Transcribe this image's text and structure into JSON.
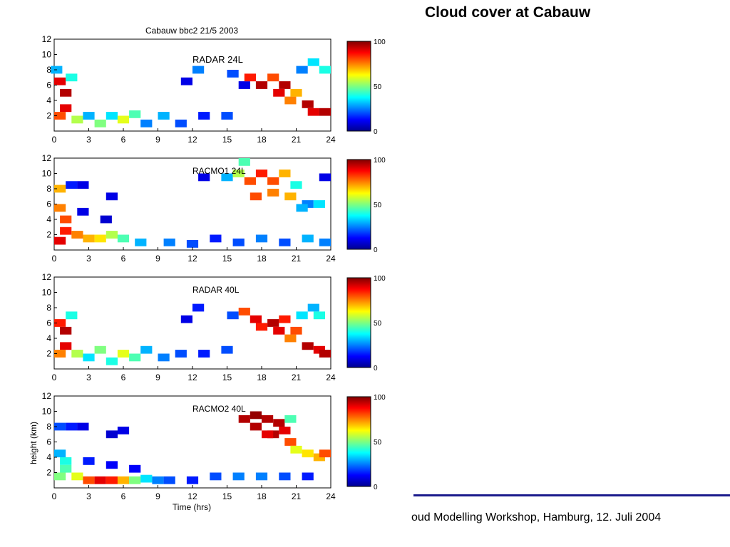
{
  "slide": {
    "title": "Cloud cover at Cabauw",
    "footer": "oud Modelling Workshop, Hamburg, 12. Juli 2004"
  },
  "chart_data": {
    "type": "heatmap",
    "figure_title": "Cabauw bbc2 21/5 2003",
    "xlabel": "Time (hrs)",
    "ylabel": "height (km)",
    "xlim": [
      0,
      24
    ],
    "ylim": [
      0,
      12
    ],
    "xticks": [
      "0",
      "3",
      "6",
      "9",
      "12",
      "15",
      "18",
      "21",
      "24"
    ],
    "yticks": [
      "2",
      "4",
      "6",
      "8",
      "10",
      "12"
    ],
    "colorbar": {
      "ticks": [
        "100",
        "50",
        "0"
      ],
      "range": [
        0,
        100
      ],
      "colormap": "jet"
    },
    "panels": [
      {
        "name": "RADAR 24L",
        "cells": [
          {
            "t": 0.5,
            "z": 6.5,
            "v": 90
          },
          {
            "t": 1.0,
            "z": 5.0,
            "v": 95
          },
          {
            "t": 1.0,
            "z": 3.0,
            "v": 90
          },
          {
            "t": 0.5,
            "z": 2.0,
            "v": 80
          },
          {
            "t": 1.5,
            "z": 7.0,
            "v": 40
          },
          {
            "t": 0.2,
            "z": 8.0,
            "v": 30
          },
          {
            "t": 2.0,
            "z": 1.5,
            "v": 55
          },
          {
            "t": 3.0,
            "z": 2.0,
            "v": 30
          },
          {
            "t": 4.0,
            "z": 1.0,
            "v": 50
          },
          {
            "t": 5.0,
            "z": 2.0,
            "v": 35
          },
          {
            "t": 6.0,
            "z": 1.5,
            "v": 60
          },
          {
            "t": 7.0,
            "z": 2.2,
            "v": 45
          },
          {
            "t": 8.0,
            "z": 1.0,
            "v": 25
          },
          {
            "t": 9.5,
            "z": 2.0,
            "v": 30
          },
          {
            "t": 11.0,
            "z": 1.0,
            "v": 20
          },
          {
            "t": 13.0,
            "z": 2.0,
            "v": 15
          },
          {
            "t": 15.0,
            "z": 2.0,
            "v": 20
          },
          {
            "t": 11.5,
            "z": 6.5,
            "v": 10
          },
          {
            "t": 12.5,
            "z": 8.0,
            "v": 25
          },
          {
            "t": 15.5,
            "z": 7.5,
            "v": 20
          },
          {
            "t": 16.5,
            "z": 6.0,
            "v": 10
          },
          {
            "t": 17.0,
            "z": 7.0,
            "v": 85
          },
          {
            "t": 18.0,
            "z": 6.0,
            "v": 95
          },
          {
            "t": 19.0,
            "z": 7.0,
            "v": 80
          },
          {
            "t": 19.5,
            "z": 5.0,
            "v": 90
          },
          {
            "t": 20.0,
            "z": 6.0,
            "v": 95
          },
          {
            "t": 20.5,
            "z": 4.0,
            "v": 75
          },
          {
            "t": 21.0,
            "z": 5.0,
            "v": 70
          },
          {
            "t": 22.0,
            "z": 3.5,
            "v": 95
          },
          {
            "t": 22.5,
            "z": 2.5,
            "v": 90
          },
          {
            "t": 23.5,
            "z": 2.5,
            "v": 95
          },
          {
            "t": 21.5,
            "z": 8.0,
            "v": 25
          },
          {
            "t": 22.5,
            "z": 9.0,
            "v": 35
          },
          {
            "t": 23.5,
            "z": 8.0,
            "v": 40
          }
        ]
      },
      {
        "name": "RACMO1 24L",
        "cells": [
          {
            "t": 0.5,
            "z": 5.5,
            "v": 75
          },
          {
            "t": 1.0,
            "z": 4.0,
            "v": 80
          },
          {
            "t": 1.0,
            "z": 2.5,
            "v": 85
          },
          {
            "t": 0.5,
            "z": 1.2,
            "v": 90
          },
          {
            "t": 2.0,
            "z": 2.0,
            "v": 75
          },
          {
            "t": 3.0,
            "z": 1.5,
            "v": 70
          },
          {
            "t": 4.0,
            "z": 1.5,
            "v": 65
          },
          {
            "t": 5.0,
            "z": 2.0,
            "v": 55
          },
          {
            "t": 6.0,
            "z": 1.5,
            "v": 45
          },
          {
            "t": 7.5,
            "z": 1.0,
            "v": 30
          },
          {
            "t": 10.0,
            "z": 1.0,
            "v": 25
          },
          {
            "t": 12.0,
            "z": 0.8,
            "v": 20
          },
          {
            "t": 14.0,
            "z": 1.5,
            "v": 15
          },
          {
            "t": 16.0,
            "z": 1.0,
            "v": 20
          },
          {
            "t": 18.0,
            "z": 1.5,
            "v": 25
          },
          {
            "t": 20.0,
            "z": 1.0,
            "v": 20
          },
          {
            "t": 22.0,
            "z": 1.5,
            "v": 30
          },
          {
            "t": 23.5,
            "z": 1.0,
            "v": 25
          },
          {
            "t": 0.5,
            "z": 8.0,
            "v": 70
          },
          {
            "t": 1.5,
            "z": 8.5,
            "v": 15
          },
          {
            "t": 2.5,
            "z": 8.5,
            "v": 10
          },
          {
            "t": 5.0,
            "z": 7.0,
            "v": 10
          },
          {
            "t": 2.5,
            "z": 5.0,
            "v": 10
          },
          {
            "t": 4.5,
            "z": 4.0,
            "v": 8
          },
          {
            "t": 13.0,
            "z": 9.5,
            "v": 10
          },
          {
            "t": 15.0,
            "z": 9.5,
            "v": 30
          },
          {
            "t": 16.0,
            "z": 10.0,
            "v": 55
          },
          {
            "t": 17.0,
            "z": 9.0,
            "v": 80
          },
          {
            "t": 18.0,
            "z": 10.0,
            "v": 85
          },
          {
            "t": 19.0,
            "z": 9.0,
            "v": 80
          },
          {
            "t": 20.0,
            "z": 10.0,
            "v": 70
          },
          {
            "t": 21.0,
            "z": 8.5,
            "v": 40
          },
          {
            "t": 22.0,
            "z": 6.0,
            "v": 25
          },
          {
            "t": 17.5,
            "z": 7.0,
            "v": 80
          },
          {
            "t": 19.0,
            "z": 7.5,
            "v": 75
          },
          {
            "t": 20.5,
            "z": 7.0,
            "v": 70
          },
          {
            "t": 21.5,
            "z": 5.5,
            "v": 30
          },
          {
            "t": 23.0,
            "z": 6.0,
            "v": 35
          },
          {
            "t": 16.5,
            "z": 11.5,
            "v": 45
          },
          {
            "t": 23.5,
            "z": 9.5,
            "v": 10
          }
        ]
      },
      {
        "name": "RADAR 40L",
        "cells": [
          {
            "t": 0.5,
            "z": 6.0,
            "v": 85
          },
          {
            "t": 1.0,
            "z": 5.0,
            "v": 95
          },
          {
            "t": 1.0,
            "z": 3.0,
            "v": 90
          },
          {
            "t": 0.5,
            "z": 2.0,
            "v": 75
          },
          {
            "t": 1.5,
            "z": 7.0,
            "v": 40
          },
          {
            "t": 2.0,
            "z": 2.0,
            "v": 55
          },
          {
            "t": 3.0,
            "z": 1.5,
            "v": 35
          },
          {
            "t": 4.0,
            "z": 2.5,
            "v": 50
          },
          {
            "t": 5.0,
            "z": 1.0,
            "v": 40
          },
          {
            "t": 6.0,
            "z": 2.0,
            "v": 60
          },
          {
            "t": 7.0,
            "z": 1.5,
            "v": 45
          },
          {
            "t": 8.0,
            "z": 2.5,
            "v": 30
          },
          {
            "t": 9.5,
            "z": 1.5,
            "v": 25
          },
          {
            "t": 11.0,
            "z": 2.0,
            "v": 20
          },
          {
            "t": 13.0,
            "z": 2.0,
            "v": 15
          },
          {
            "t": 15.0,
            "z": 2.5,
            "v": 20
          },
          {
            "t": 12.5,
            "z": 8.0,
            "v": 15
          },
          {
            "t": 11.5,
            "z": 6.5,
            "v": 10
          },
          {
            "t": 15.5,
            "z": 7.0,
            "v": 20
          },
          {
            "t": 16.5,
            "z": 7.5,
            "v": 80
          },
          {
            "t": 17.5,
            "z": 6.5,
            "v": 90
          },
          {
            "t": 18.0,
            "z": 5.5,
            "v": 85
          },
          {
            "t": 19.0,
            "z": 6.0,
            "v": 95
          },
          {
            "t": 19.5,
            "z": 5.0,
            "v": 90
          },
          {
            "t": 20.0,
            "z": 6.5,
            "v": 85
          },
          {
            "t": 20.5,
            "z": 4.0,
            "v": 75
          },
          {
            "t": 21.0,
            "z": 5.0,
            "v": 80
          },
          {
            "t": 22.0,
            "z": 3.0,
            "v": 95
          },
          {
            "t": 23.0,
            "z": 2.5,
            "v": 90
          },
          {
            "t": 23.5,
            "z": 2.0,
            "v": 95
          },
          {
            "t": 21.5,
            "z": 7.0,
            "v": 35
          },
          {
            "t": 22.5,
            "z": 8.0,
            "v": 30
          },
          {
            "t": 23.0,
            "z": 7.0,
            "v": 40
          }
        ]
      },
      {
        "name": "RACMO2 40L",
        "cells": [
          {
            "t": 0.5,
            "z": 4.5,
            "v": 30
          },
          {
            "t": 1.0,
            "z": 3.5,
            "v": 40
          },
          {
            "t": 1.0,
            "z": 2.5,
            "v": 45
          },
          {
            "t": 0.5,
            "z": 1.5,
            "v": 50
          },
          {
            "t": 2.0,
            "z": 1.5,
            "v": 60
          },
          {
            "t": 3.0,
            "z": 1.0,
            "v": 80
          },
          {
            "t": 4.0,
            "z": 1.0,
            "v": 90
          },
          {
            "t": 5.0,
            "z": 1.0,
            "v": 85
          },
          {
            "t": 6.0,
            "z": 1.0,
            "v": 70
          },
          {
            "t": 7.0,
            "z": 1.0,
            "v": 50
          },
          {
            "t": 8.0,
            "z": 1.2,
            "v": 35
          },
          {
            "t": 9.0,
            "z": 1.0,
            "v": 25
          },
          {
            "t": 10.0,
            "z": 1.0,
            "v": 20
          },
          {
            "t": 12.0,
            "z": 1.0,
            "v": 15
          },
          {
            "t": 14.0,
            "z": 1.5,
            "v": 20
          },
          {
            "t": 16.0,
            "z": 1.5,
            "v": 25
          },
          {
            "t": 18.0,
            "z": 1.5,
            "v": 25
          },
          {
            "t": 20.0,
            "z": 1.5,
            "v": 20
          },
          {
            "t": 22.0,
            "z": 1.5,
            "v": 15
          },
          {
            "t": 3.0,
            "z": 3.5,
            "v": 15
          },
          {
            "t": 5.0,
            "z": 3.0,
            "v": 12
          },
          {
            "t": 7.0,
            "z": 2.5,
            "v": 12
          },
          {
            "t": 0.5,
            "z": 8.0,
            "v": 20
          },
          {
            "t": 1.5,
            "z": 8.0,
            "v": 15
          },
          {
            "t": 2.5,
            "z": 8.0,
            "v": 10
          },
          {
            "t": 5.0,
            "z": 7.0,
            "v": 8
          },
          {
            "t": 6.0,
            "z": 7.5,
            "v": 10
          },
          {
            "t": 16.5,
            "z": 9.0,
            "v": 95
          },
          {
            "t": 17.5,
            "z": 9.5,
            "v": 98
          },
          {
            "t": 18.5,
            "z": 9.0,
            "v": 95
          },
          {
            "t": 19.5,
            "z": 8.5,
            "v": 95
          },
          {
            "t": 20.0,
            "z": 7.5,
            "v": 90
          },
          {
            "t": 19.0,
            "z": 7.0,
            "v": 95
          },
          {
            "t": 20.5,
            "z": 6.0,
            "v": 80
          },
          {
            "t": 21.0,
            "z": 5.0,
            "v": 60
          },
          {
            "t": 22.0,
            "z": 4.5,
            "v": 65
          },
          {
            "t": 23.0,
            "z": 4.0,
            "v": 70
          },
          {
            "t": 23.5,
            "z": 4.5,
            "v": 80
          },
          {
            "t": 17.5,
            "z": 8.0,
            "v": 95
          },
          {
            "t": 18.5,
            "z": 7.0,
            "v": 90
          },
          {
            "t": 20.5,
            "z": 9.0,
            "v": 45
          }
        ]
      }
    ]
  }
}
